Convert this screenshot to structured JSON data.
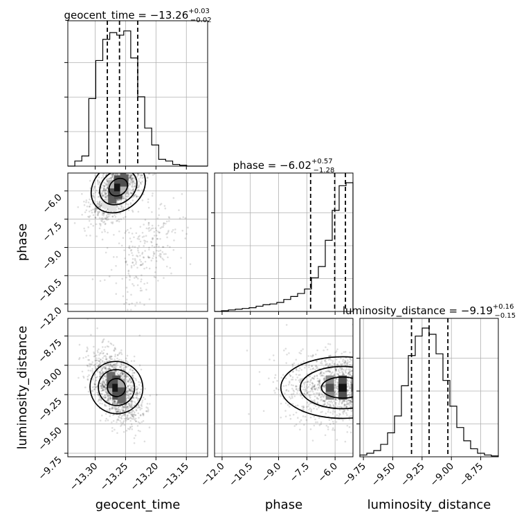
{
  "chart_data": {
    "type": "corner",
    "parameters": [
      "geocent_time",
      "phase",
      "luminosity_distance"
    ],
    "ranges": {
      "geocent_time": [
        -13.345,
        -13.115
      ],
      "phase": [
        -12.4,
        -5.05
      ],
      "luminosity_distance": [
        -9.78,
        -8.6
      ]
    },
    "titles": {
      "geocent_time": {
        "label": "geocent_time",
        "median": "-13.26",
        "plus": "+0.03",
        "minus": "-0.02"
      },
      "phase": {
        "label": "phase",
        "median": "-6.02",
        "plus": "+0.57",
        "minus": "-1.28"
      },
      "luminosity_distance": {
        "label": "luminosity_distance",
        "median": "-9.19",
        "plus": "+0.16",
        "minus": "-0.15"
      }
    },
    "ticks": {
      "geocent_time": [
        "-13.30",
        "-13.25",
        "-13.20",
        "-13.15"
      ],
      "phase": [
        "-12.0",
        "-10.5",
        "-9.0",
        "-7.5",
        "-6.0"
      ],
      "luminosity_distance": [
        "-9.75",
        "-9.50",
        "-9.25",
        "-9.00",
        "-8.75"
      ]
    },
    "quantiles": {
      "geocent_time": [
        -13.28,
        -13.26,
        -13.23
      ],
      "phase": [
        -7.3,
        -6.02,
        -5.45
      ],
      "luminosity_distance": [
        -9.34,
        -9.19,
        -9.03
      ]
    },
    "histograms": {
      "geocent_time": {
        "edges": [
          -13.345,
          -13.3335,
          -13.322,
          -13.3105,
          -13.299,
          -13.2875,
          -13.276,
          -13.2645,
          -13.253,
          -13.2415,
          -13.23,
          -13.2185,
          -13.207,
          -13.1955,
          -13.184,
          -13.1725,
          -13.161,
          -13.1495,
          -13.138,
          -13.1265,
          -13.115
        ],
        "counts": [
          0,
          6,
          12,
          80,
          125,
          150,
          158,
          155,
          160,
          128,
          82,
          45,
          25,
          8,
          6,
          2,
          1,
          0,
          0,
          0
        ]
      },
      "phase": {
        "edges": [
          -12.4,
          -12.0325,
          -11.665,
          -11.2975,
          -10.93,
          -10.5625,
          -10.195,
          -9.8275,
          -9.46,
          -9.0925,
          -8.725,
          -8.3575,
          -7.99,
          -7.6225,
          -7.255,
          -6.8875,
          -6.52,
          -6.1525,
          -5.785,
          -5.4175,
          -5.05
        ],
        "counts": [
          0,
          1,
          2,
          3,
          4,
          5,
          7,
          9,
          10,
          12,
          16,
          20,
          24,
          30,
          45,
          60,
          95,
          135,
          168,
          172
        ]
      },
      "luminosity_distance": {
        "edges": [
          -9.78,
          -9.721,
          -9.662,
          -9.603,
          -9.544,
          -9.485,
          -9.426,
          -9.367,
          -9.308,
          -9.249,
          -9.19,
          -9.131,
          -9.072,
          -9.013,
          -8.954,
          -8.895,
          -8.836,
          -8.777,
          -8.718,
          -8.659,
          -8.6
        ],
        "counts": [
          2,
          4,
          7,
          14,
          27,
          46,
          80,
          114,
          136,
          145,
          138,
          116,
          86,
          57,
          33,
          18,
          9,
          4,
          2,
          1
        ]
      }
    },
    "samples_2d": [
      {
        "x": "geocent_time",
        "y": "phase",
        "mean": [
          -13.262,
          -5.8
        ],
        "sd": [
          0.022,
          0.9
        ],
        "corr": 0.62,
        "n": 1300,
        "extra_tail": {
          "mean": [
            -13.215,
            -9.3
          ],
          "sd": [
            0.03,
            1.4
          ],
          "corr": 0.55,
          "n": 260
        }
      },
      {
        "x": "geocent_time",
        "y": "luminosity_distance",
        "mean": [
          -13.265,
          -9.19
        ],
        "sd": [
          0.02,
          0.15
        ],
        "corr": -0.45,
        "n": 1400
      },
      {
        "x": "phase",
        "y": "luminosity_distance",
        "mean": [
          -5.6,
          -9.19
        ],
        "sd": [
          1.5,
          0.15
        ],
        "corr": 0.0,
        "n": 1500
      }
    ],
    "grid": true,
    "density_shading": "greys"
  }
}
